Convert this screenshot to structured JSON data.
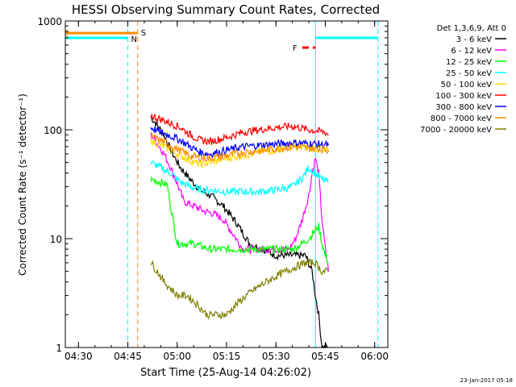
{
  "chart_data": {
    "type": "line",
    "title": "HESSI Observing Summary Count Rates, Corrected",
    "xlabel": "Start Time (25-Aug-14 04:26:02)",
    "ylabel": "Corrected Count Rate (s⁻¹ detector⁻¹)",
    "y_scale": "log",
    "xlim": [
      "04:26",
      "06:04"
    ],
    "ylim": [
      1,
      1000
    ],
    "x_ticks": [
      "04:30",
      "04:45",
      "05:00",
      "05:15",
      "05:30",
      "05:45",
      "06:00"
    ],
    "y_ticks": [
      {
        "value": 1,
        "label": "1"
      },
      {
        "value": 10,
        "label": "10"
      },
      {
        "value": 100,
        "label": "100"
      },
      {
        "value": 1000,
        "label": "1000"
      }
    ],
    "legend_position": "right",
    "legend_header": "Det 1,3,6,9, Att 0",
    "timestamp": "23-Jan-2017 05:18",
    "series": [
      {
        "name": "3 - 6 keV",
        "color": "#000000",
        "x": [
          "04:52",
          "04:54",
          "04:56",
          "04:58",
          "05:01",
          "05:04",
          "05:07",
          "05:10",
          "05:14",
          "05:18",
          "05:22",
          "05:26",
          "05:30",
          "05:33",
          "05:36",
          "05:39",
          "05:41",
          "05:42",
          "05:43",
          "05:44",
          "05:45",
          "05:46"
        ],
        "values": [
          130,
          110,
          90,
          65,
          45,
          35,
          28,
          25,
          20,
          14,
          9,
          8,
          7,
          7,
          7,
          7,
          5,
          3,
          2,
          1,
          1,
          1
        ]
      },
      {
        "name": "6 - 12 keV",
        "color": "#ff00ff",
        "x": [
          "04:52",
          "04:54",
          "04:56",
          "04:58",
          "05:00",
          "05:02",
          "05:05",
          "05:08",
          "05:11",
          "05:14",
          "05:17",
          "05:20",
          "05:24",
          "05:28",
          "05:32",
          "05:34",
          "05:36",
          "05:38",
          "05:40",
          "05:41",
          "05:42",
          "05:43",
          "05:44",
          "05:45",
          "05:46"
        ],
        "values": [
          90,
          75,
          60,
          45,
          32,
          22,
          20,
          18,
          17,
          15,
          11,
          8,
          8,
          8,
          8,
          8,
          10,
          15,
          25,
          40,
          55,
          40,
          15,
          8,
          5
        ]
      },
      {
        "name": "12 - 25 keV",
        "color": "#00ff00",
        "x": [
          "04:52",
          "04:55",
          "04:57",
          "04:58",
          "05:00",
          "05:05",
          "05:10",
          "05:15",
          "05:20",
          "05:25",
          "05:30",
          "05:35",
          "05:38",
          "05:40",
          "05:42",
          "05:43",
          "05:44",
          "05:45",
          "05:46"
        ],
        "values": [
          35,
          33,
          31,
          20,
          9,
          9,
          8,
          8,
          8,
          8,
          8,
          8,
          9,
          10,
          12,
          13,
          9,
          7,
          6
        ]
      },
      {
        "name": "25 - 50 keV",
        "color": "#00ffff",
        "x": [
          "04:52",
          "04:55",
          "04:58",
          "05:01",
          "05:04",
          "05:07",
          "05:10",
          "05:15",
          "05:20",
          "05:25",
          "05:30",
          "05:35",
          "05:38",
          "05:40",
          "05:42",
          "05:44",
          "05:46"
        ],
        "values": [
          50,
          45,
          40,
          33,
          30,
          28,
          28,
          27,
          27,
          27,
          28,
          30,
          36,
          45,
          40,
          35,
          33
        ]
      },
      {
        "name": "50 - 100 keV",
        "color": "#ffd700",
        "x": [
          "04:52",
          "04:55",
          "04:58",
          "05:01",
          "05:04",
          "05:07",
          "05:10",
          "05:15",
          "05:20",
          "05:25",
          "05:30",
          "05:35",
          "05:40",
          "05:45",
          "05:46"
        ],
        "values": [
          80,
          72,
          65,
          58,
          52,
          48,
          50,
          55,
          58,
          62,
          65,
          70,
          68,
          66,
          62
        ]
      },
      {
        "name": "100 - 300 keV",
        "color": "#ff0000",
        "x": [
          "04:52",
          "04:55",
          "04:58",
          "05:01",
          "05:04",
          "05:07",
          "05:10",
          "05:15",
          "05:20",
          "05:25",
          "05:30",
          "05:35",
          "05:40",
          "05:45",
          "05:46"
        ],
        "values": [
          135,
          125,
          115,
          105,
          90,
          80,
          78,
          85,
          95,
          100,
          105,
          108,
          100,
          95,
          90
        ]
      },
      {
        "name": "300 - 800 keV",
        "color": "#0000ff",
        "x": [
          "04:52",
          "04:55",
          "04:58",
          "05:01",
          "05:04",
          "05:07",
          "05:10",
          "05:15",
          "05:20",
          "05:25",
          "05:30",
          "05:35",
          "05:40",
          "05:45",
          "05:46"
        ],
        "values": [
          105,
          95,
          88,
          80,
          70,
          62,
          60,
          65,
          70,
          72,
          74,
          76,
          75,
          73,
          72
        ]
      },
      {
        "name": "800 - 7000 keV",
        "color": "#ff8c00",
        "x": [
          "04:52",
          "04:55",
          "04:58",
          "05:01",
          "05:04",
          "05:07",
          "05:10",
          "05:15",
          "05:20",
          "05:25",
          "05:30",
          "05:35",
          "05:40",
          "05:45",
          "05:46"
        ],
        "values": [
          88,
          80,
          72,
          64,
          58,
          55,
          55,
          58,
          62,
          64,
          67,
          70,
          68,
          66,
          65
        ]
      },
      {
        "name": "7000 - 20000 keV",
        "color": "#808000",
        "x": [
          "04:52",
          "04:54",
          "04:56",
          "04:58",
          "05:00",
          "05:03",
          "05:06",
          "05:09",
          "05:12",
          "05:15",
          "05:18",
          "05:21",
          "05:24",
          "05:27",
          "05:30",
          "05:33",
          "05:36",
          "05:39",
          "05:42",
          "05:44",
          "05:46"
        ],
        "values": [
          6,
          5,
          4,
          3.5,
          3,
          3,
          2.5,
          2,
          2,
          2,
          2.5,
          3,
          3.5,
          4,
          4.5,
          5,
          5.5,
          6,
          6,
          5,
          5
        ]
      }
    ],
    "annotations": [
      {
        "label": "S",
        "type": "state_bar",
        "color": "#ff8c00",
        "start": "04:26",
        "end": "04:48"
      },
      {
        "label": "N",
        "type": "state_bar",
        "color": "#00ffff",
        "start": "04:26",
        "end": "04:45"
      },
      {
        "label": "F",
        "type": "state_bar_dashed",
        "color": "#ff0000",
        "start": "05:38",
        "end": "05:42"
      },
      {
        "label": "",
        "type": "state_bar",
        "color": "#00ffff",
        "start": "05:42",
        "end": "06:01"
      }
    ],
    "vertical_lines": [
      {
        "time": "04:45",
        "color": "#00ffff",
        "style": "dashed"
      },
      {
        "time": "04:48",
        "color": "#ff8c00",
        "style": "dashed"
      },
      {
        "time": "05:42",
        "color": "#00ffff",
        "style": "solid"
      },
      {
        "time": "06:01",
        "color": "#00ffff",
        "style": "dashed"
      }
    ]
  }
}
